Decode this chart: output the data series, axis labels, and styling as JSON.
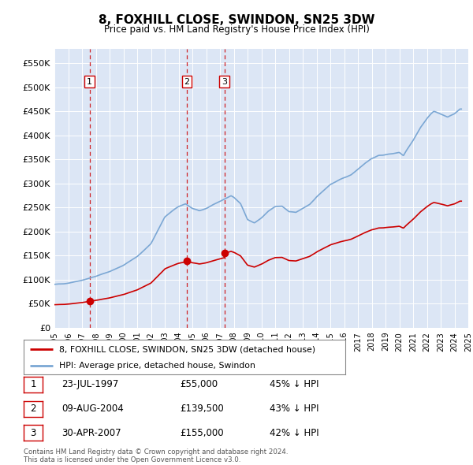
{
  "title": "8, FOXHILL CLOSE, SWINDON, SN25 3DW",
  "subtitle": "Price paid vs. HM Land Registry's House Price Index (HPI)",
  "background_color": "#dce6f5",
  "plot_bg_color": "#dce6f5",
  "hpi_color": "#7ba7d4",
  "price_color": "#cc0000",
  "sale_line_color": "#cc0000",
  "ylim": [
    0,
    580000
  ],
  "yticks": [
    0,
    50000,
    100000,
    150000,
    200000,
    250000,
    300000,
    350000,
    400000,
    450000,
    500000,
    550000
  ],
  "ytick_labels": [
    "£0",
    "£50K",
    "£100K",
    "£150K",
    "£200K",
    "£250K",
    "£300K",
    "£350K",
    "£400K",
    "£450K",
    "£500K",
    "£550K"
  ],
  "sales": [
    {
      "date_x": 1997.55,
      "price": 55000,
      "label": "1",
      "date_str": "23-JUL-1997",
      "price_str": "£55,000",
      "hpi_pct": "45% ↓ HPI"
    },
    {
      "date_x": 2004.6,
      "price": 139500,
      "label": "2",
      "date_str": "09-AUG-2004",
      "price_str": "£139,500",
      "hpi_pct": "43% ↓ HPI"
    },
    {
      "date_x": 2007.33,
      "price": 155000,
      "label": "3",
      "date_str": "30-APR-2007",
      "price_str": "£155,000",
      "hpi_pct": "42% ↓ HPI"
    }
  ],
  "legend_line1": "8, FOXHILL CLOSE, SWINDON, SN25 3DW (detached house)",
  "legend_line2": "HPI: Average price, detached house, Swindon",
  "footer": "Contains HM Land Registry data © Crown copyright and database right 2024.\nThis data is licensed under the Open Government Licence v3.0.",
  "xmin": 1995.0,
  "xmax": 2025.0
}
